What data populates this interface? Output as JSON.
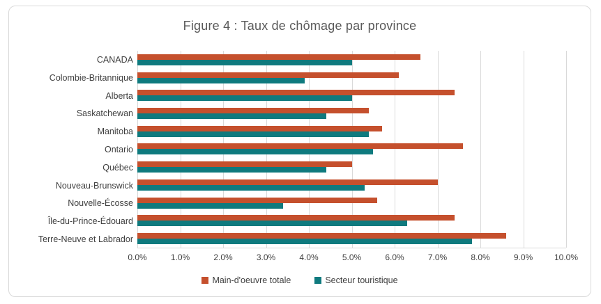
{
  "chart_data": {
    "type": "bar",
    "orientation": "horizontal",
    "title": "Figure 4 : Taux de chômage par province",
    "categories": [
      "CANADA",
      "Colombie-Britannique",
      "Alberta",
      "Saskatchewan",
      "Manitoba",
      "Ontario",
      "Québec",
      "Nouveau-Brunswick",
      "Nouvelle-Écosse",
      "Île-du-Prince-Édouard",
      "Terre-Neuve et Labrador"
    ],
    "series": [
      {
        "name": "Main-d'oeuvre totale",
        "color": "#C5502D",
        "values": [
          6.6,
          6.1,
          7.4,
          5.4,
          5.7,
          7.6,
          5.0,
          7.0,
          5.6,
          7.4,
          8.6
        ]
      },
      {
        "name": "Secteur touristique",
        "color": "#0F7A7E",
        "values": [
          5.0,
          3.9,
          5.0,
          4.4,
          5.4,
          5.5,
          4.4,
          5.3,
          3.4,
          6.3,
          7.8
        ]
      }
    ],
    "x_ticks": [
      "0.0%",
      "1.0%",
      "2.0%",
      "3.0%",
      "4.0%",
      "5.0%",
      "6.0%",
      "7.0%",
      "8.0%",
      "9.0%",
      "10.0%"
    ],
    "xlim": [
      0,
      10
    ],
    "grid": true,
    "legend_position": "bottom"
  },
  "colors": {
    "series1": "#C5502D",
    "series2": "#0F7A7E",
    "title_text": "#595959",
    "axis_text": "#404040",
    "gridline": "#D9D9D9",
    "frame_border": "#D9D9D9",
    "background": "#FFFFFF"
  }
}
